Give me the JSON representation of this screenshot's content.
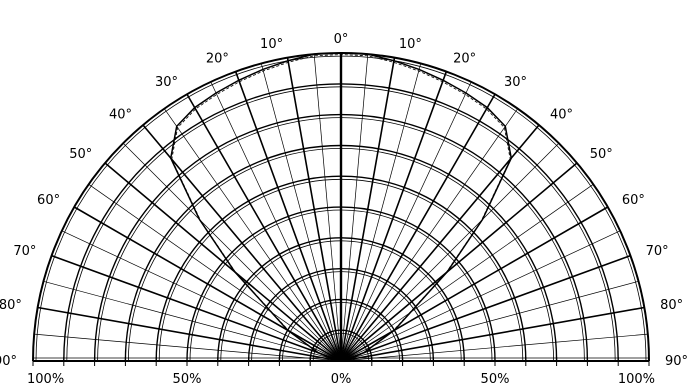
{
  "chart_data": {
    "type": "line",
    "subtype": "polar-half-radiation-pattern",
    "title": "",
    "angle_unit": "degrees",
    "angle_range": [
      -90,
      90
    ],
    "angle_ticks": [
      -90,
      -80,
      -70,
      -60,
      -50,
      -40,
      -30,
      -20,
      -10,
      0,
      10,
      20,
      30,
      40,
      50,
      60,
      70,
      80,
      90
    ],
    "angle_tick_labels_left": [
      "90°",
      "80°",
      "70°",
      "60°",
      "50°",
      "40°",
      "30°",
      "20°",
      "10°"
    ],
    "angle_tick_labels_right": [
      "0°",
      "10°",
      "20°",
      "30°",
      "40°",
      "50°",
      "60°",
      "70°",
      "80°",
      "90°"
    ],
    "radial_unit": "percent",
    "radial_range": [
      0,
      100
    ],
    "radial_rings": [
      10,
      20,
      30,
      40,
      50,
      60,
      70,
      80,
      90,
      100
    ],
    "radial_tick_labels": [
      "100%",
      "50%",
      "0%",
      "50%",
      "100%"
    ],
    "grid": true,
    "legend": "none",
    "series": [
      {
        "angle": [
          -90,
          -80,
          -70,
          -60,
          -50,
          -45,
          -40,
          -35,
          -30,
          -25,
          -20,
          -15,
          -10,
          -5,
          0,
          5,
          10,
          15,
          20,
          25,
          30,
          35,
          40,
          45,
          50,
          60,
          70,
          80,
          90
        ],
        "value": [
          0,
          2,
          8,
          20,
          45,
          65,
          86,
          93,
          95,
          96,
          97,
          98,
          99,
          100,
          100,
          100,
          99,
          98,
          97,
          96,
          95,
          93,
          86,
          65,
          45,
          20,
          8,
          2,
          0
        ]
      }
    ]
  }
}
